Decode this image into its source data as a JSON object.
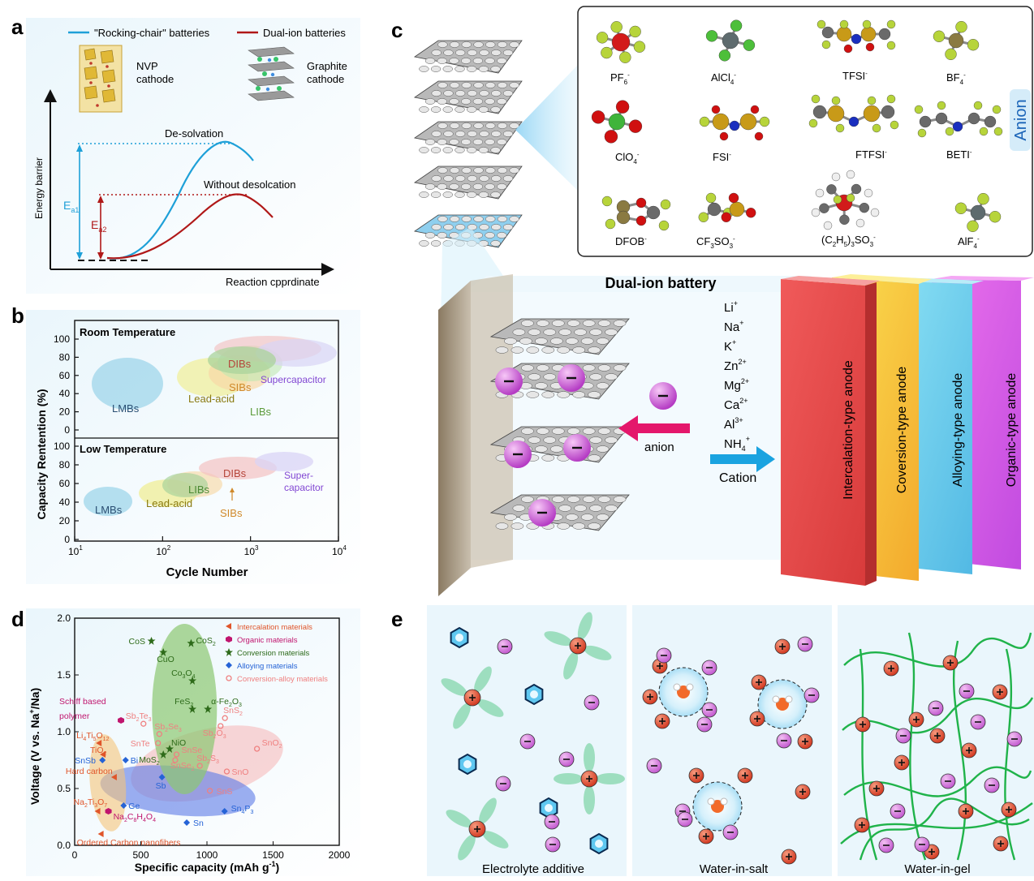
{
  "panel_labels": {
    "a": "a",
    "b": "b",
    "c": "c",
    "d": "d",
    "e": "e"
  },
  "panel_a": {
    "legend": {
      "rocking": "\"Rocking-chair\" batteries",
      "dual": "Dual-ion batteries"
    },
    "nvp": {
      "l1": "NVP",
      "l2": "cathode"
    },
    "graphite": {
      "l1": "Graphite",
      "l2": "cathode"
    },
    "ylabel": "Energy barrier",
    "xlabel": "Reaction cpprdinate",
    "desolvation": "De-solvation",
    "without": "Without desolcation",
    "ea1": {
      "base": "E",
      "sub": "a1"
    },
    "ea2": {
      "base": "E",
      "sub": "a2"
    },
    "colors": {
      "rocking": "#1ea0d8",
      "dual": "#b01818"
    }
  },
  "panel_b": {
    "ylabel": "Capacity Rentention (%)",
    "xlabel": "Cycle Number",
    "room_title": "Room Temperature",
    "low_title": "Low Temperature",
    "yticks": [
      "0",
      "20",
      "40",
      "60",
      "80",
      "100"
    ],
    "xticks": [
      {
        "b": "10",
        "e": "1"
      },
      {
        "b": "10",
        "e": "2"
      },
      {
        "b": "10",
        "e": "3"
      },
      {
        "b": "10",
        "e": "4"
      }
    ],
    "room": {
      "lmbs": "LMBs",
      "lead": "Lead-acid",
      "sibs": "SIBs",
      "libs": "LIBs",
      "dibs": "DIBs",
      "super": "Supercapacitor"
    },
    "low": {
      "lmbs": "LMBs",
      "lead": "Lead-acid",
      "libs": "LIBs",
      "sibs": "SIBs",
      "dibs": "DIBs",
      "super1": "Super-",
      "super2": "capacitor"
    }
  },
  "panel_c": {
    "anions": {
      "pf6": {
        "b": "PF",
        "s": "6",
        "p": "-"
      },
      "alcl4": {
        "b": "AlCl",
        "s": "4",
        "p": "-"
      },
      "tfsi": {
        "b": "TFSI",
        "p": "-"
      },
      "bf4": {
        "b": "BF",
        "s": "4",
        "p": "-"
      },
      "clo4": {
        "b": "ClO",
        "s": "4",
        "p": "-"
      },
      "fsi": {
        "b": "FSI",
        "p": "-"
      },
      "ftfsi": {
        "b": "FTFSI",
        "p": "-"
      },
      "beti": {
        "b": "BETI",
        "p": "-"
      },
      "dfob": {
        "b": "DFOB",
        "p": "-"
      },
      "cf3so3": {
        "b1": "CF",
        "s1": "3",
        "b2": "SO",
        "s2": "3",
        "p": "-"
      },
      "c2h5": {
        "b1": "(C",
        "s1": "2",
        "b2": "H",
        "s2": "5",
        "b3": ")",
        "s3": "3",
        "b4": "SO",
        "s4": "3",
        "p": "-"
      },
      "alf4": {
        "b": "AlF",
        "s": "4",
        "p": "-"
      }
    },
    "anion_tag": "Anion",
    "title": "Dual-ion battery",
    "cations": [
      {
        "b": "Li",
        "p": "+"
      },
      {
        "b": "Na",
        "p": "+"
      },
      {
        "b": "K",
        "p": "+"
      },
      {
        "b": "Zn",
        "p": "2+"
      },
      {
        "b": "Mg",
        "p": "2+"
      },
      {
        "b": "Ca",
        "p": "2+"
      },
      {
        "b": "Al",
        "p": "3+"
      },
      {
        "b": "NH",
        "s": "4",
        "p": "+"
      }
    ],
    "anion_arrow": "anion",
    "cation_arrow": "Cation",
    "anodes": [
      "Intercalation-type anode",
      "Coversion-type anode",
      "Alloying-type anode",
      "Organic-type anode"
    ]
  },
  "panel_d": {
    "ylabel": {
      "a": "Voltage (V vs. Na",
      "sup": "+",
      "b": "/Na)"
    },
    "xlabel": {
      "a": "Specific capacity (mAh g",
      "sup": "-1",
      "b": ")"
    },
    "xticks": [
      "0",
      "500",
      "1000",
      "1500",
      "2000"
    ],
    "yticks": [
      "0.0",
      "0.5",
      "1.0",
      "1.5",
      "2.0"
    ],
    "legend": [
      "Intercalation materials",
      "Organic materials",
      "Conversion materials",
      "Alloying materials",
      "Conversion-alloy materials"
    ],
    "colors": {
      "intercalation": "#e0552a",
      "organic": "#c0156e",
      "conversion": "#2e6b1a",
      "alloying": "#2563d6",
      "convalloy": "#ef8080"
    }
  },
  "panel_e": {
    "titles": [
      "Electrolyte additive",
      "Water-in-salt",
      "Water-in-gel"
    ]
  },
  "chart_data": [
    {
      "type": "scatter",
      "title": "",
      "xlabel": "Specific capacity (mAh g-1)",
      "ylabel": "Voltage (V vs. Na+/Na)",
      "xlim": [
        0,
        2000
      ],
      "ylim": [
        0,
        2.0
      ],
      "series": [
        {
          "name": "Intercalation materials",
          "points": [
            {
              "label": "Li4Ti5O12",
              "x": 185,
              "y": 0.9
            },
            {
              "label": "TiO2",
              "x": 215,
              "y": 0.8
            },
            {
              "label": "Hard carbon",
              "x": 300,
              "y": 0.6
            },
            {
              "label": "Na2Ti3O7",
              "x": 175,
              "y": 0.3
            },
            {
              "label": "Ordered Carbon nanofibers",
              "x": 200,
              "y": 0.1
            }
          ]
        },
        {
          "name": "Organic materials",
          "points": [
            {
              "label": "Schiff based polymer",
              "x": 350,
              "y": 1.1
            },
            {
              "label": "Na2C8H4O4",
              "x": 255,
              "y": 0.3
            }
          ]
        },
        {
          "name": "Conversion materials",
          "points": [
            {
              "label": "CoS",
              "x": 580,
              "y": 1.8
            },
            {
              "label": "CuO",
              "x": 670,
              "y": 1.7
            },
            {
              "label": "CoS2",
              "x": 880,
              "y": 1.78
            },
            {
              "label": "Co3O4",
              "x": 890,
              "y": 1.45
            },
            {
              "label": "FeS2",
              "x": 890,
              "y": 1.2
            },
            {
              "label": "a-Fe2O3",
              "x": 1007,
              "y": 1.2
            },
            {
              "label": "NiO",
              "x": 718,
              "y": 0.85
            },
            {
              "label": "MoS2",
              "x": 670,
              "y": 0.8
            }
          ]
        },
        {
          "name": "Alloying materials",
          "points": [
            {
              "label": "SnSb",
              "x": 210,
              "y": 0.75
            },
            {
              "label": "Bi",
              "x": 385,
              "y": 0.75
            },
            {
              "label": "Ge",
              "x": 370,
              "y": 0.35
            },
            {
              "label": "Sb",
              "x": 660,
              "y": 0.6
            },
            {
              "label": "Sn",
              "x": 847,
              "y": 0.2
            },
            {
              "label": "Sn4P3",
              "x": 1133,
              "y": 0.3
            }
          ]
        },
        {
          "name": "Conversion-alloy materials",
          "points": [
            {
              "label": "Sb2Te3",
              "x": 520,
              "y": 1.07
            },
            {
              "label": "Sb2Se3",
              "x": 640,
              "y": 0.98
            },
            {
              "label": "SnTe",
              "x": 630,
              "y": 0.9
            },
            {
              "label": "SnSe",
              "x": 770,
              "y": 0.8
            },
            {
              "label": "SnSe2",
              "x": 760,
              "y": 0.75
            },
            {
              "label": "SnS2",
              "x": 1136,
              "y": 1.12
            },
            {
              "label": "Sb2O3",
              "x": 1103,
              "y": 1.05
            },
            {
              "label": "SnO2",
              "x": 1378,
              "y": 0.85
            },
            {
              "label": "Sb2S3",
              "x": 946,
              "y": 0.7
            },
            {
              "label": "SnO",
              "x": 1150,
              "y": 0.65
            },
            {
              "label": "SnS",
              "x": 1022,
              "y": 0.48
            }
          ]
        }
      ]
    }
  ]
}
